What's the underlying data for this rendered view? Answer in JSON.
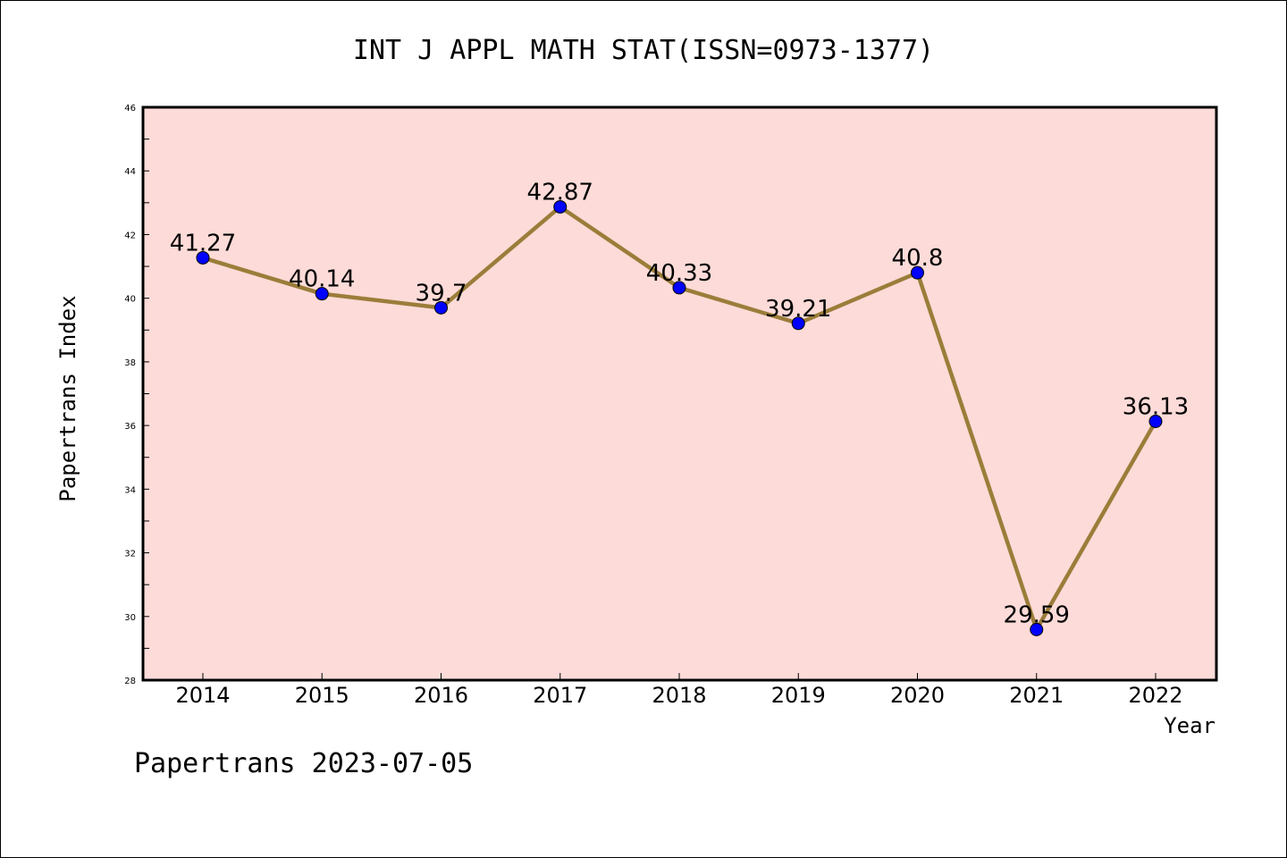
{
  "chart_data": {
    "type": "line",
    "title": "INT J APPL MATH STAT(ISSN=0973-1377)",
    "xlabel": "Year",
    "ylabel": "Papertrans Index",
    "categories": [
      "2014",
      "2015",
      "2016",
      "2017",
      "2018",
      "2019",
      "2020",
      "2021",
      "2022"
    ],
    "values": [
      41.27,
      40.14,
      39.7,
      42.87,
      40.33,
      39.21,
      40.8,
      29.59,
      36.13
    ],
    "data_labels": [
      "41.27",
      "40.14",
      "39.7",
      "42.87",
      "40.33",
      "39.21",
      "40.8",
      "29.59",
      "36.13"
    ],
    "ylim": [
      28,
      46
    ],
    "yticks": [
      "28",
      "30",
      "32",
      "34",
      "36",
      "38",
      "40",
      "42",
      "44",
      "46"
    ],
    "grid": false,
    "legend": "none",
    "colors": {
      "plot_background": "#fddbd8",
      "line": "#9b7d3a",
      "marker": "#0000ff"
    }
  },
  "footer": "Papertrans 2023-07-05"
}
